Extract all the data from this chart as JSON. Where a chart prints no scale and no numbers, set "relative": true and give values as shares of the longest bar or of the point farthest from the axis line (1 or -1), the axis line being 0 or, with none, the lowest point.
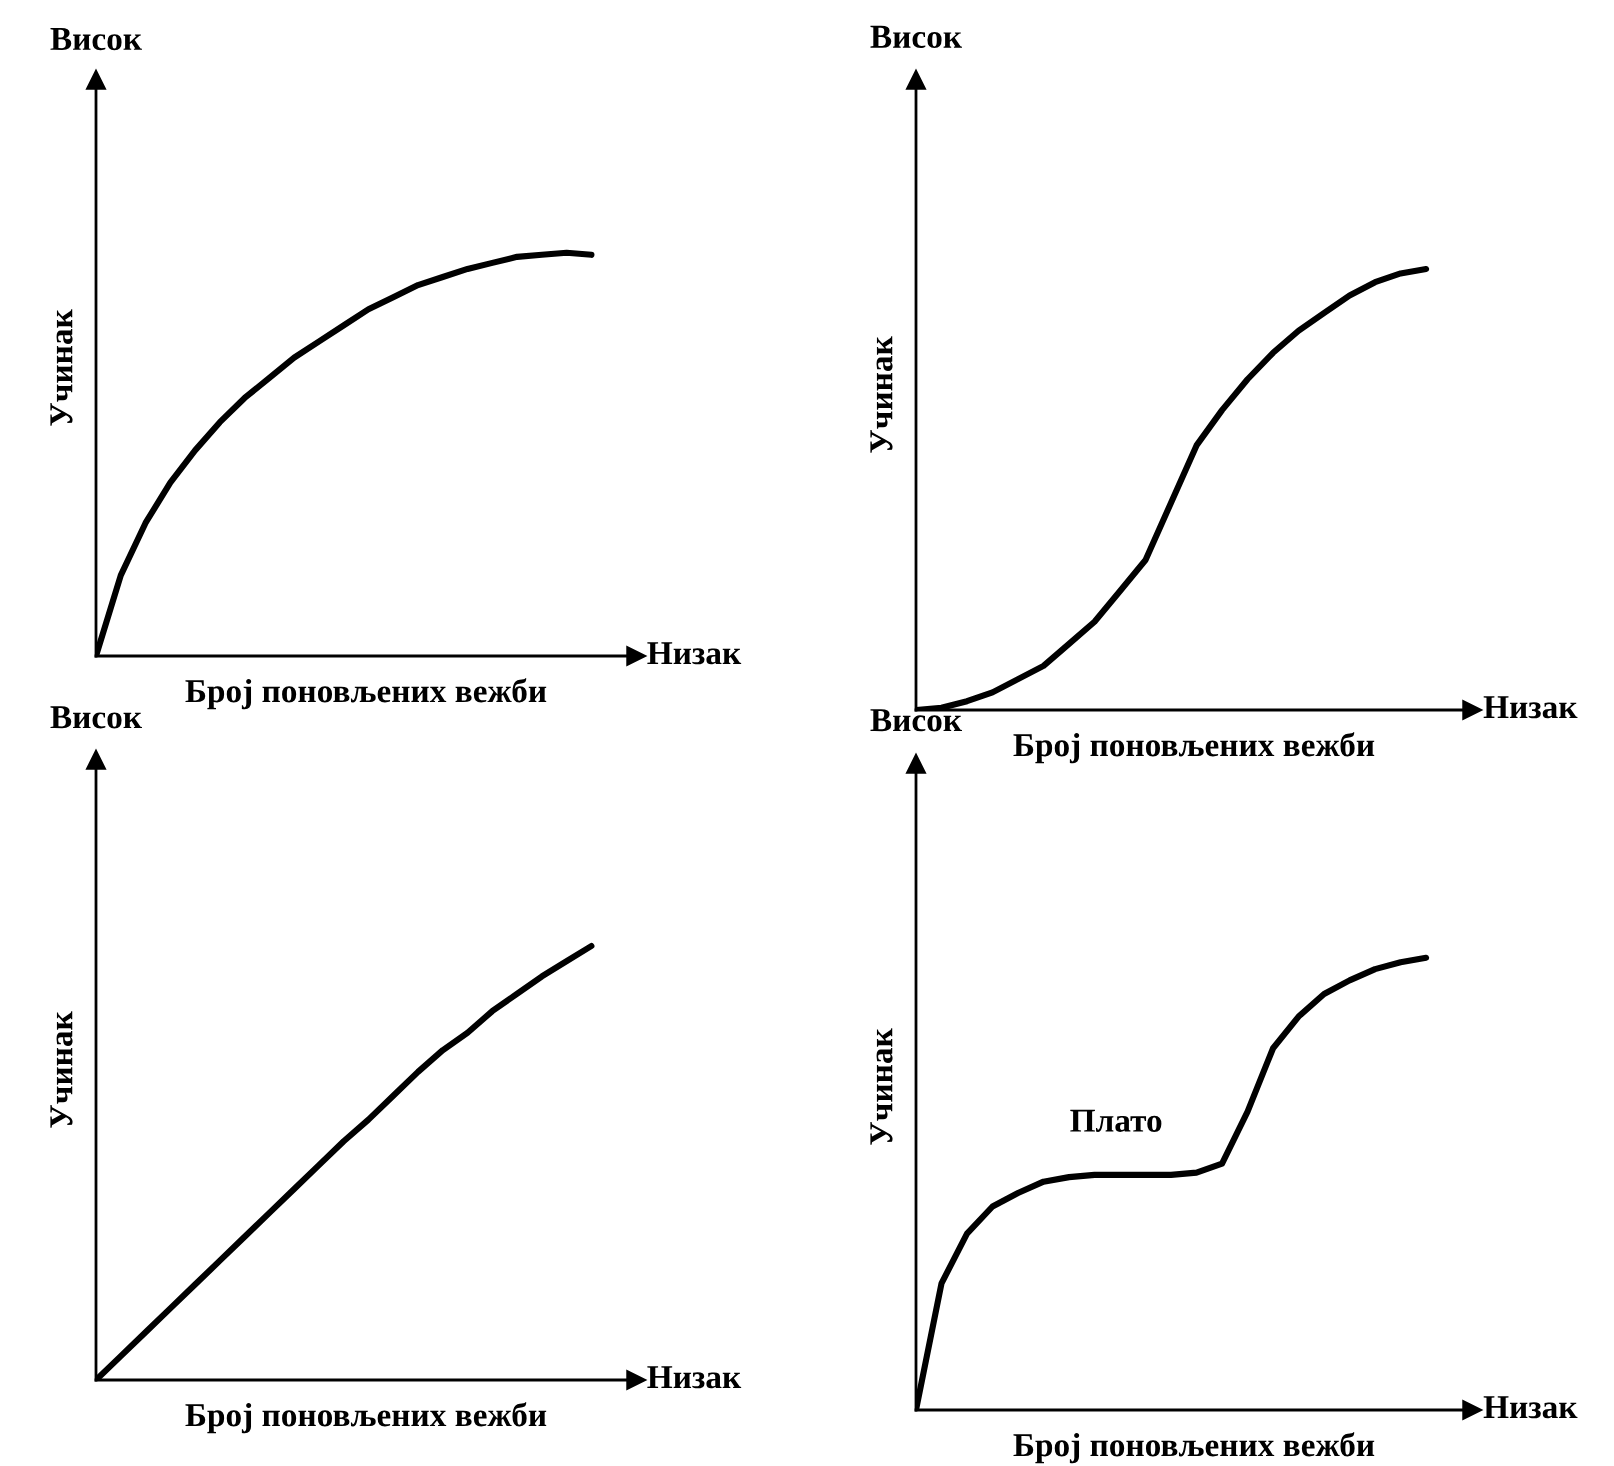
{
  "chart_data": [
    {
      "type": "line",
      "relative": true,
      "color": "#000000",
      "xlabel": "Број поновљених вежби",
      "ylabel": "Учинак",
      "annotations": [
        "Висок",
        "Низак"
      ],
      "categories": [
        null,
        null,
        null,
        null,
        null,
        null,
        null,
        null,
        null,
        null,
        null,
        null,
        null,
        null,
        null,
        null,
        null,
        null,
        null,
        null,
        null
      ],
      "values": [
        0,
        0.2,
        0.33,
        0.43,
        0.51,
        0.58,
        0.64,
        0.69,
        0.74,
        0.78,
        0.82,
        0.86,
        0.89,
        0.92,
        0.94,
        0.96,
        0.975,
        0.99,
        0.995,
        1.0,
        0.995
      ]
    },
    {
      "type": "line",
      "relative": true,
      "color": "#000000",
      "xlabel": "Број поновљених вежби",
      "ylabel": "Учинак",
      "annotations": [
        "Висок",
        "Низак"
      ],
      "categories": [
        null,
        null,
        null,
        null,
        null,
        null,
        null,
        null,
        null,
        null,
        null,
        null,
        null,
        null,
        null,
        null,
        null,
        null,
        null,
        null,
        null
      ],
      "values": [
        0,
        0.005,
        0.02,
        0.04,
        0.07,
        0.1,
        0.15,
        0.2,
        0.27,
        0.34,
        0.47,
        0.6,
        0.68,
        0.75,
        0.81,
        0.86,
        0.9,
        0.94,
        0.97,
        0.99,
        1.0
      ]
    },
    {
      "type": "line",
      "relative": true,
      "color": "#000000",
      "xlabel": "Број поновљених вежби",
      "ylabel": "Учинак",
      "annotations": [
        "Висок",
        "Низак"
      ],
      "categories": [
        null,
        null,
        null,
        null,
        null,
        null,
        null,
        null,
        null,
        null,
        null,
        null,
        null,
        null,
        null,
        null,
        null,
        null,
        null,
        null,
        null
      ],
      "values": [
        0,
        0.055,
        0.11,
        0.165,
        0.22,
        0.275,
        0.33,
        0.385,
        0.44,
        0.495,
        0.55,
        0.6,
        0.655,
        0.71,
        0.76,
        0.8,
        0.85,
        0.89,
        0.93,
        0.965,
        1.0
      ]
    },
    {
      "type": "line",
      "relative": true,
      "color": "#000000",
      "xlabel": "Број поновљених вежби",
      "ylabel": "Учинак",
      "annotations": [
        "Висок",
        "Низак",
        "Плато"
      ],
      "categories": [
        null,
        null,
        null,
        null,
        null,
        null,
        null,
        null,
        null,
        null,
        null,
        null,
        null,
        null,
        null,
        null,
        null,
        null,
        null,
        null,
        null
      ],
      "values": [
        0,
        0.28,
        0.39,
        0.45,
        0.48,
        0.505,
        0.515,
        0.52,
        0.52,
        0.52,
        0.52,
        0.525,
        0.545,
        0.66,
        0.8,
        0.87,
        0.92,
        0.95,
        0.975,
        0.99,
        1.0
      ]
    }
  ]
}
